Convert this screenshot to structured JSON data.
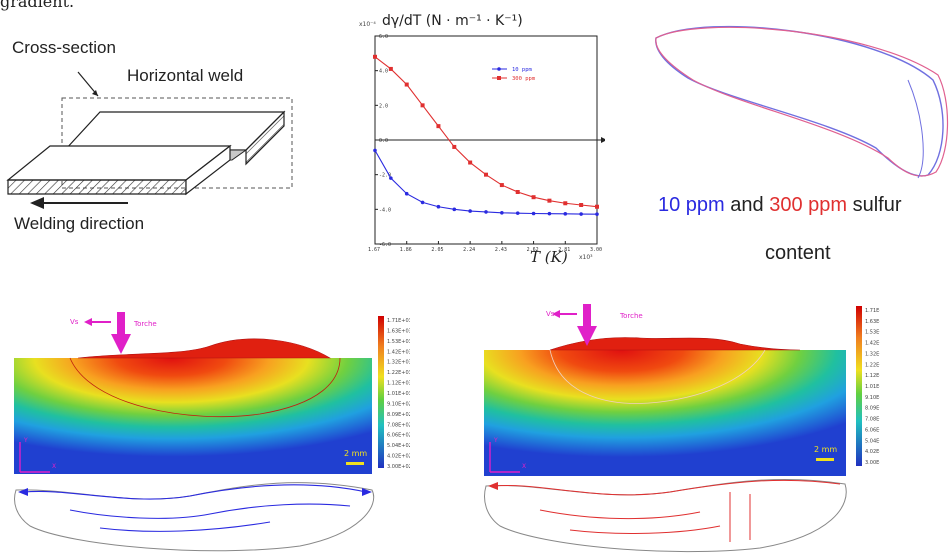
{
  "top_text": "gradient.",
  "weld_diagram": {
    "cross_section_label": "Cross-section",
    "horizontal_weld_label": "Horizontal weld",
    "welding_direction_label": "Welding direction"
  },
  "chart_data": {
    "type": "line",
    "title": "dγ/dT (N · m⁻¹ · K⁻¹)",
    "y_multiplier": "x10⁻⁴",
    "xlabel": "T (K)",
    "x_multiplier": "x10³",
    "xlim": [
      1.67,
      3.0
    ],
    "ylim": [
      -6.0,
      6.0
    ],
    "x_ticks": [
      "1.67",
      "1.86",
      "2.05",
      "2.24",
      "2.43",
      "2.62",
      "2.81",
      "3.00"
    ],
    "y_ticks": [
      "6.0",
      "4.0",
      "2.0",
      "0.0",
      "-2.0",
      "-4.0",
      "-6.0"
    ],
    "legend_position": "top-right",
    "x": [
      1.67,
      1.765,
      1.86,
      1.955,
      2.05,
      2.145,
      2.24,
      2.335,
      2.43,
      2.525,
      2.62,
      2.715,
      2.81,
      2.905,
      3.0
    ],
    "series": [
      {
        "name": "10 ppm",
        "color": "#2a2ae0",
        "values": [
          -0.6,
          -2.2,
          -3.1,
          -3.6,
          -3.85,
          -4.0,
          -4.1,
          -4.15,
          -4.2,
          -4.22,
          -4.24,
          -4.25,
          -4.26,
          -4.27,
          -4.28
        ]
      },
      {
        "name": "300 ppm",
        "color": "#e03030",
        "values": [
          4.8,
          4.1,
          3.2,
          2.0,
          0.8,
          -0.4,
          -1.3,
          -2.0,
          -2.6,
          -3.0,
          -3.3,
          -3.5,
          -3.65,
          -3.75,
          -3.85
        ]
      }
    ]
  },
  "outline_caption": {
    "part1": "10 ppm",
    "part2": " and ",
    "part3": "300 ppm",
    "part4": " sulfur",
    "line2": "content",
    "color_low": "#2a2ae0",
    "color_high": "#e03030"
  },
  "sim_left": {
    "vs_label": "Vs",
    "torch_label": "Torche",
    "scale_label": "2 mm",
    "axis_y": "Y",
    "axis_x": "X",
    "colorbar_labels": [
      "1.71E+03",
      "1.63E+03",
      "1.53E+03",
      "1.42E+03",
      "1.32E+03",
      "1.22E+03",
      "1.12E+03",
      "1.01E+03",
      "9.10E+02",
      "8.09E+02",
      "7.08E+02",
      "6.06E+02",
      "5.04E+02",
      "4.02E+02",
      "3.00E+02"
    ]
  },
  "sim_right": {
    "vs_label": "Vs",
    "torch_label": "Torche",
    "scale_label": "2 mm",
    "axis_y": "Y",
    "axis_x": "X",
    "colorbar_labels": [
      "1.71E+03",
      "1.63E+03",
      "1.53E+03",
      "1.42E+03",
      "1.32E+03",
      "1.22E+03",
      "1.12E+03",
      "1.01E+03",
      "9.10E+02",
      "8.09E+02",
      "7.08E+02",
      "6.06E+02",
      "5.04E+02",
      "4.02E+02",
      "3.00E+02"
    ]
  },
  "colors": {
    "accent_magenta": "#e020c8",
    "scale_yellow": "#f0e020"
  }
}
